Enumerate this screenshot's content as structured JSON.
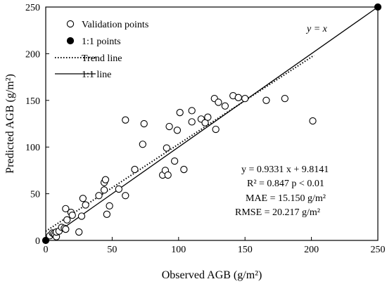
{
  "chart_data": {
    "type": "scatter",
    "xlabel": "Observed AGB (g/m²)",
    "ylabel": "Predicted AGB (g/m²)",
    "xlim": [
      0,
      250
    ],
    "ylim": [
      0,
      250
    ],
    "xticks": [
      0,
      50,
      100,
      150,
      200,
      250
    ],
    "yticks": [
      0,
      50,
      100,
      150,
      200,
      250
    ],
    "grid": false,
    "legend_position": "top-left",
    "series": [
      {
        "name": "Validation points",
        "marker": "open-circle",
        "points": [
          [
            3,
            5
          ],
          [
            5,
            8
          ],
          [
            6,
            7
          ],
          [
            7,
            6
          ],
          [
            8,
            4
          ],
          [
            8,
            9
          ],
          [
            10,
            10
          ],
          [
            12,
            14
          ],
          [
            14,
            13
          ],
          [
            15,
            12
          ],
          [
            15,
            34
          ],
          [
            16,
            22
          ],
          [
            19,
            30
          ],
          [
            20,
            27
          ],
          [
            25,
            9
          ],
          [
            27,
            26
          ],
          [
            28,
            45
          ],
          [
            30,
            38
          ],
          [
            40,
            48
          ],
          [
            44,
            54
          ],
          [
            44,
            62
          ],
          [
            45,
            65
          ],
          [
            46,
            28
          ],
          [
            48,
            37
          ],
          [
            55,
            55
          ],
          [
            60,
            48
          ],
          [
            60,
            129
          ],
          [
            67,
            76
          ],
          [
            73,
            103
          ],
          [
            74,
            125
          ],
          [
            88,
            70
          ],
          [
            90,
            75
          ],
          [
            91,
            99
          ],
          [
            92,
            70
          ],
          [
            93,
            122
          ],
          [
            97,
            85
          ],
          [
            99,
            118
          ],
          [
            101,
            137
          ],
          [
            104,
            76
          ],
          [
            110,
            127
          ],
          [
            110,
            139
          ],
          [
            117,
            130
          ],
          [
            120,
            126
          ],
          [
            122,
            132
          ],
          [
            127,
            152
          ],
          [
            128,
            119
          ],
          [
            130,
            148
          ],
          [
            135,
            144
          ],
          [
            141,
            155
          ],
          [
            145,
            153
          ],
          [
            150,
            152
          ],
          [
            166,
            150
          ],
          [
            180,
            152
          ],
          [
            201,
            128
          ]
        ]
      },
      {
        "name": "1:1 points",
        "marker": "filled-circle",
        "points": [
          [
            0,
            0
          ],
          [
            250,
            250
          ]
        ]
      }
    ],
    "lines": [
      {
        "name": "Trend line",
        "style": "dotted",
        "slope": 0.9331,
        "intercept": 9.8141
      },
      {
        "name": "1:1 line",
        "style": "solid",
        "slope": 1,
        "intercept": 0
      }
    ],
    "annotations": {
      "yx_label": "y = x",
      "equation": "y = 0.9331 x + 9.8141",
      "r2": "R² = 0.847   p < 0.01",
      "mae": "MAE = 15.150 g/m²",
      "rmse": "RMSE = 20.217 g/m²"
    }
  }
}
